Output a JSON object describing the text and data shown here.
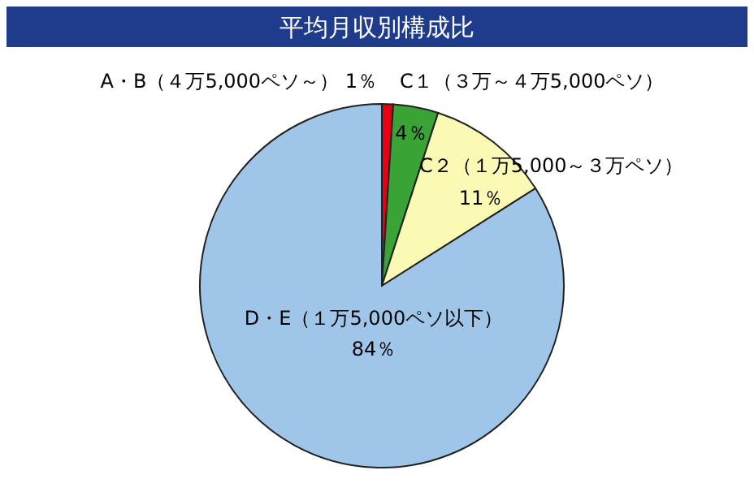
{
  "chart_data": {
    "type": "pie",
    "title": "平均月収別構成比",
    "categories": [
      "A・B（４万5,000ペソ～）",
      "C１（３万～４万5,000ペソ）",
      "C２（１万5,000～３万ペソ）",
      "D・E（１万5,000ペソ以下）"
    ],
    "values": [
      1,
      4,
      11,
      84
    ],
    "colors": [
      "#e60012",
      "#3aa335",
      "#fafab4",
      "#9fc5e8"
    ],
    "value_labels": [
      "1％",
      "4％",
      "11％",
      "84％"
    ]
  }
}
